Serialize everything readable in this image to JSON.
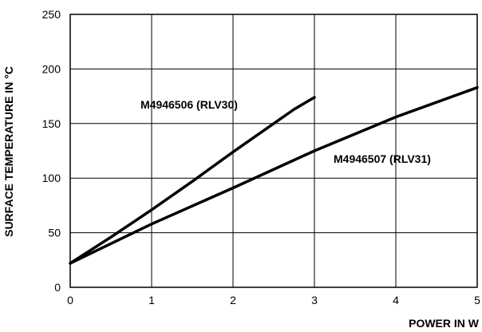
{
  "chart_data": {
    "type": "line",
    "title": "",
    "xlabel": "POWER IN W",
    "ylabel": "SURFACE TEMPERATURE IN °C",
    "xlim": [
      0,
      5
    ],
    "ylim": [
      0,
      250
    ],
    "xticks": [
      0,
      1,
      2,
      3,
      4,
      5
    ],
    "yticks": [
      0,
      50,
      100,
      150,
      200,
      250
    ],
    "grid": true,
    "series": [
      {
        "name": "M4946506 (RLV30)",
        "x": [
          0,
          0.5,
          1.0,
          1.5,
          2.0,
          2.5,
          2.75,
          3.0
        ],
        "y": [
          22,
          46,
          71,
          97,
          124,
          150,
          163,
          174
        ]
      },
      {
        "name": "M4946507 (RLV31)",
        "x": [
          0,
          1.0,
          2.0,
          3.0,
          4.0,
          5.0
        ],
        "y": [
          22,
          58,
          91,
          125,
          156,
          183
        ]
      }
    ]
  }
}
